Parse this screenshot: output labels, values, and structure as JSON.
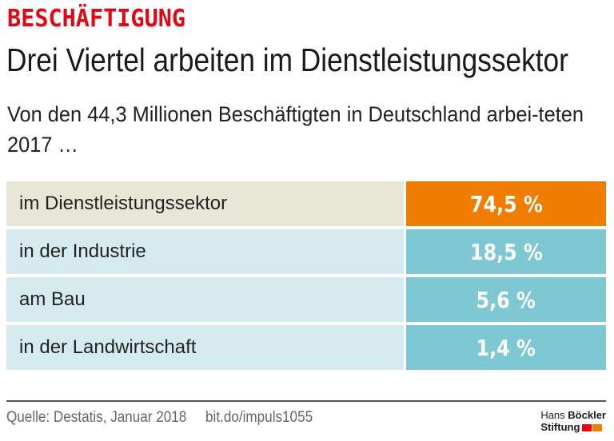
{
  "header": {
    "kicker": "BESCHÄFTIGUNG",
    "title": "Drei Viertel arbeiten im Dienstleistungssektor",
    "subtitle": "Von den 44,3 Millionen Beschäftigten in Deutschland arbei-teten 2017 …"
  },
  "chart_data": {
    "type": "table",
    "unit": "%",
    "rows": [
      {
        "label": "im Dienstleistungssektor",
        "value": 74.5,
        "display": "74,5 %",
        "label_bg": "#e8e6d6",
        "value_bg": "#f07d00"
      },
      {
        "label": "in der Industrie",
        "value": 18.5,
        "display": "18,5 %",
        "label_bg": "#d6ebef",
        "value_bg": "#7dc8d2"
      },
      {
        "label": "am Bau",
        "value": 5.6,
        "display": "5,6 %",
        "label_bg": "#d6ebef",
        "value_bg": "#7dc8d2"
      },
      {
        "label": "in der Landwirtschaft",
        "value": 1.4,
        "display": "1,4 %",
        "label_bg": "#d6ebef",
        "value_bg": "#7dc8d2"
      }
    ]
  },
  "footer": {
    "source": "Quelle: Destatis, Januar 2018",
    "link": "bit.do/impuls1055",
    "logo_line1_a": "Hans",
    "logo_line1_b": "Böckler",
    "logo_line2": "Stiftung"
  },
  "colors": {
    "accent": "#e30613",
    "orange": "#f07d00",
    "teal": "#7dc8d2"
  }
}
